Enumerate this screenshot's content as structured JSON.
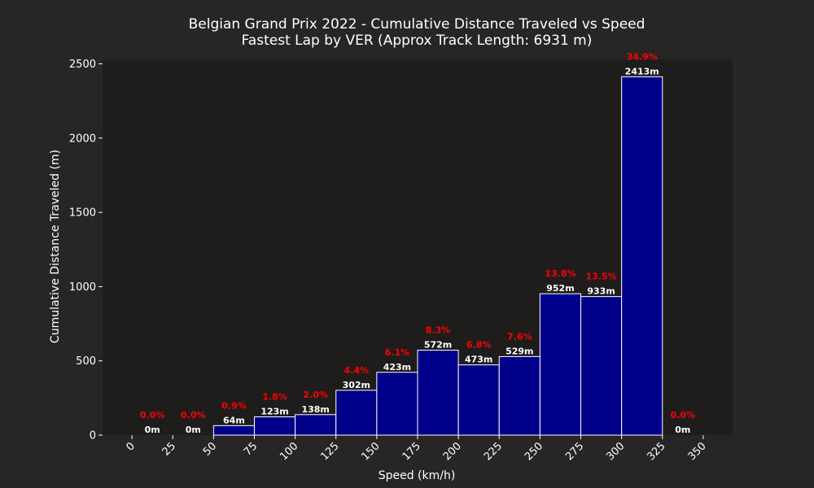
{
  "chart_data": {
    "type": "bar",
    "title": "Belgian Grand Prix 2022 - Cumulative Distance Traveled vs Speed",
    "subtitle": "Fastest Lap by VER (Approx Track Length: 6931 m)",
    "xlabel": "Speed (km/h)",
    "ylabel": "Cumulative Distance Traveled (m)",
    "xlim": [
      -18,
      368
    ],
    "ylim": [
      0,
      2530
    ],
    "x_ticks": [
      0,
      25,
      50,
      75,
      100,
      125,
      150,
      175,
      200,
      225,
      250,
      275,
      300,
      325,
      350
    ],
    "y_ticks": [
      0,
      500,
      1000,
      1500,
      2000,
      2500
    ],
    "bins": [
      {
        "start": 0,
        "end": 25,
        "value": 0,
        "label": "0m",
        "pct": "0.0%"
      },
      {
        "start": 25,
        "end": 50,
        "value": 0,
        "label": "0m",
        "pct": "0.0%"
      },
      {
        "start": 50,
        "end": 75,
        "value": 64,
        "label": "64m",
        "pct": "0.9%"
      },
      {
        "start": 75,
        "end": 100,
        "value": 123,
        "label": "123m",
        "pct": "1.8%"
      },
      {
        "start": 100,
        "end": 125,
        "value": 138,
        "label": "138m",
        "pct": "2.0%"
      },
      {
        "start": 125,
        "end": 150,
        "value": 302,
        "label": "302m",
        "pct": "4.4%"
      },
      {
        "start": 150,
        "end": 175,
        "value": 423,
        "label": "423m",
        "pct": "6.1%"
      },
      {
        "start": 175,
        "end": 200,
        "value": 572,
        "label": "572m",
        "pct": "8.3%"
      },
      {
        "start": 200,
        "end": 225,
        "value": 473,
        "label": "473m",
        "pct": "6.8%"
      },
      {
        "start": 225,
        "end": 250,
        "value": 529,
        "label": "529m",
        "pct": "7.6%"
      },
      {
        "start": 250,
        "end": 275,
        "value": 952,
        "label": "952m",
        "pct": "13.8%"
      },
      {
        "start": 275,
        "end": 300,
        "value": 933,
        "label": "933m",
        "pct": "13.5%"
      },
      {
        "start": 300,
        "end": 325,
        "value": 2413,
        "label": "2413m",
        "pct": "34.9%"
      },
      {
        "start": 325,
        "end": 350,
        "value": 0,
        "label": "0m",
        "pct": "0.0%"
      }
    ],
    "grid": false,
    "colors": {
      "figure_bg": "#282525",
      "plot_bg": "#1f1d1c",
      "bar_fill": "#00008b",
      "bar_edge": "#ffffff",
      "value_label": "#ffffff",
      "pct_label": "#ff0000",
      "text": "#ffffff"
    }
  }
}
